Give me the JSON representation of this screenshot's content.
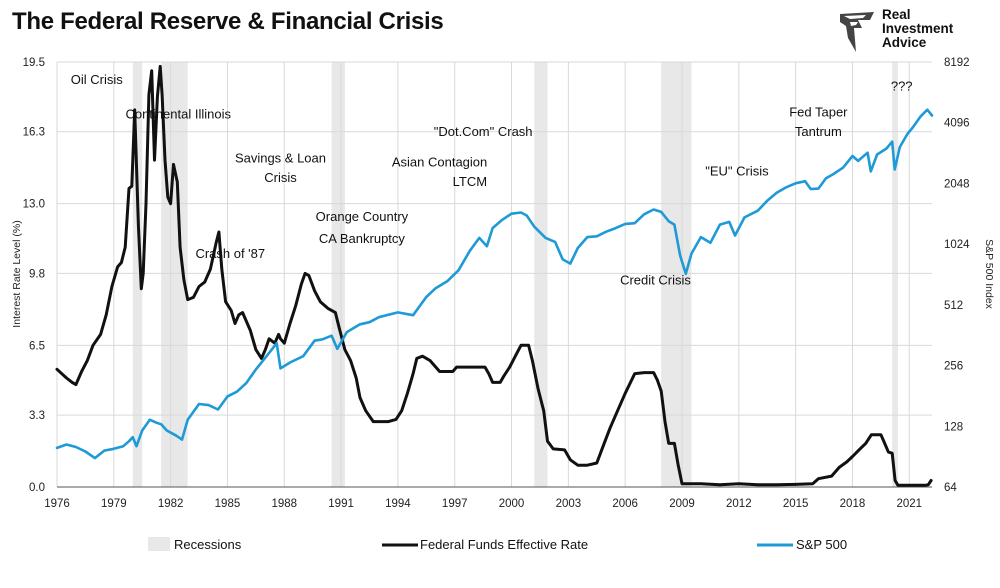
{
  "title": "The Federal Reserve & Financial Crisis",
  "brand": {
    "line1": "Real",
    "line2": "Investment",
    "line3": "Advice"
  },
  "colors": {
    "fed": "#111111",
    "sp500": "#1e9ad6",
    "recession": "#e8e8e8",
    "grid": "#d9d9d9"
  },
  "chart_data": {
    "type": "line",
    "title": "The Federal Reserve & Financial Crisis",
    "xlabel": "",
    "ylabel_left": "Interest Rate Level (%)",
    "ylabel_right": "S&P 500 Index",
    "xlim": [
      1976,
      2022.2
    ],
    "ylim_left": [
      0,
      19.5
    ],
    "ylim_right": [
      64,
      8192
    ],
    "right_scale": "log2",
    "x_ticks": [
      1976,
      1979,
      1982,
      1985,
      1988,
      1991,
      1994,
      1997,
      2000,
      2003,
      2006,
      2009,
      2012,
      2015,
      2018,
      2021
    ],
    "y_ticks_left": [
      0.0,
      3.3,
      6.5,
      9.8,
      13.0,
      16.3,
      19.5
    ],
    "y_ticks_left_labels": [
      "0.0",
      "3.3",
      "6.5",
      "9.8",
      "13.0",
      "16.3",
      "19.5"
    ],
    "y_ticks_right": [
      64,
      128,
      256,
      512,
      1024,
      2048,
      4096,
      8192
    ],
    "recessions": [
      [
        1980.0,
        1980.5
      ],
      [
        1981.5,
        1982.9
      ],
      [
        1990.5,
        1991.2
      ],
      [
        2001.2,
        2001.9
      ],
      [
        2007.9,
        2009.5
      ],
      [
        2020.1,
        2020.4
      ]
    ],
    "legend": {
      "recessions": "Recessions",
      "fed": "Federal Funds Effective Rate",
      "sp500": "S&P 500"
    },
    "series": [
      {
        "name": "Federal Funds Effective Rate",
        "axis": "left",
        "points": [
          [
            1976.0,
            5.4
          ],
          [
            1976.5,
            5.0
          ],
          [
            1976.8,
            4.8
          ],
          [
            1977.0,
            4.7
          ],
          [
            1977.3,
            5.3
          ],
          [
            1977.6,
            5.8
          ],
          [
            1977.9,
            6.5
          ],
          [
            1978.3,
            7.0
          ],
          [
            1978.6,
            7.9
          ],
          [
            1978.9,
            9.2
          ],
          [
            1979.2,
            10.1
          ],
          [
            1979.4,
            10.3
          ],
          [
            1979.6,
            11.0
          ],
          [
            1979.8,
            13.7
          ],
          [
            1979.95,
            13.8
          ],
          [
            1980.1,
            17.3
          ],
          [
            1980.3,
            12.0
          ],
          [
            1980.45,
            9.1
          ],
          [
            1980.55,
            9.8
          ],
          [
            1980.7,
            13.0
          ],
          [
            1980.85,
            18.0
          ],
          [
            1981.0,
            19.1
          ],
          [
            1981.15,
            15.0
          ],
          [
            1981.3,
            17.9
          ],
          [
            1981.45,
            19.3
          ],
          [
            1981.55,
            18.0
          ],
          [
            1981.7,
            15.0
          ],
          [
            1981.85,
            13.3
          ],
          [
            1982.0,
            13.0
          ],
          [
            1982.15,
            14.8
          ],
          [
            1982.35,
            14.0
          ],
          [
            1982.5,
            11.0
          ],
          [
            1982.7,
            9.5
          ],
          [
            1982.9,
            8.6
          ],
          [
            1983.2,
            8.7
          ],
          [
            1983.5,
            9.2
          ],
          [
            1983.8,
            9.4
          ],
          [
            1984.1,
            10.0
          ],
          [
            1984.4,
            11.2
          ],
          [
            1984.55,
            11.7
          ],
          [
            1984.7,
            10.0
          ],
          [
            1984.9,
            8.5
          ],
          [
            1985.2,
            8.1
          ],
          [
            1985.4,
            7.5
          ],
          [
            1985.6,
            7.9
          ],
          [
            1985.8,
            8.0
          ],
          [
            1986.2,
            7.2
          ],
          [
            1986.5,
            6.3
          ],
          [
            1986.8,
            5.9
          ],
          [
            1987.0,
            6.3
          ],
          [
            1987.2,
            6.8
          ],
          [
            1987.5,
            6.6
          ],
          [
            1987.7,
            7.0
          ],
          [
            1987.8,
            6.8
          ],
          [
            1988.0,
            6.6
          ],
          [
            1988.3,
            7.5
          ],
          [
            1988.6,
            8.3
          ],
          [
            1988.9,
            9.3
          ],
          [
            1989.1,
            9.8
          ],
          [
            1989.3,
            9.7
          ],
          [
            1989.6,
            9.0
          ],
          [
            1989.9,
            8.5
          ],
          [
            1990.3,
            8.2
          ],
          [
            1990.7,
            8.0
          ],
          [
            1990.9,
            7.3
          ],
          [
            1991.2,
            6.3
          ],
          [
            1991.5,
            5.8
          ],
          [
            1991.8,
            5.0
          ],
          [
            1992.0,
            4.1
          ],
          [
            1992.3,
            3.5
          ],
          [
            1992.7,
            3.0
          ],
          [
            1993.0,
            3.0
          ],
          [
            1993.5,
            3.0
          ],
          [
            1993.9,
            3.1
          ],
          [
            1994.2,
            3.5
          ],
          [
            1994.5,
            4.3
          ],
          [
            1994.8,
            5.2
          ],
          [
            1995.0,
            5.9
          ],
          [
            1995.3,
            6.0
          ],
          [
            1995.7,
            5.8
          ],
          [
            1996.0,
            5.5
          ],
          [
            1996.2,
            5.3
          ],
          [
            1996.5,
            5.3
          ],
          [
            1996.9,
            5.3
          ],
          [
            1997.1,
            5.5
          ],
          [
            1997.5,
            5.5
          ],
          [
            1997.9,
            5.5
          ],
          [
            1998.2,
            5.5
          ],
          [
            1998.6,
            5.5
          ],
          [
            1998.8,
            5.2
          ],
          [
            1999.0,
            4.8
          ],
          [
            1999.4,
            4.8
          ],
          [
            1999.6,
            5.1
          ],
          [
            1999.9,
            5.5
          ],
          [
            2000.2,
            6.0
          ],
          [
            2000.5,
            6.5
          ],
          [
            2000.9,
            6.5
          ],
          [
            2001.1,
            5.8
          ],
          [
            2001.4,
            4.5
          ],
          [
            2001.7,
            3.5
          ],
          [
            2001.9,
            2.1
          ],
          [
            2002.2,
            1.75
          ],
          [
            2002.8,
            1.7
          ],
          [
            2003.1,
            1.25
          ],
          [
            2003.5,
            1.0
          ],
          [
            2004.0,
            1.0
          ],
          [
            2004.5,
            1.1
          ],
          [
            2004.8,
            1.8
          ],
          [
            2005.2,
            2.7
          ],
          [
            2005.6,
            3.5
          ],
          [
            2006.0,
            4.3
          ],
          [
            2006.5,
            5.2
          ],
          [
            2007.0,
            5.25
          ],
          [
            2007.5,
            5.25
          ],
          [
            2007.7,
            4.9
          ],
          [
            2007.9,
            4.4
          ],
          [
            2008.1,
            3.0
          ],
          [
            2008.3,
            2.0
          ],
          [
            2008.6,
            2.0
          ],
          [
            2008.8,
            1.0
          ],
          [
            2009.0,
            0.15
          ],
          [
            2010.0,
            0.15
          ],
          [
            2011.0,
            0.1
          ],
          [
            2012.0,
            0.15
          ],
          [
            2013.0,
            0.1
          ],
          [
            2014.0,
            0.1
          ],
          [
            2015.0,
            0.12
          ],
          [
            2015.9,
            0.15
          ],
          [
            2016.2,
            0.38
          ],
          [
            2016.9,
            0.5
          ],
          [
            2017.3,
            0.9
          ],
          [
            2017.7,
            1.15
          ],
          [
            2018.0,
            1.4
          ],
          [
            2018.4,
            1.75
          ],
          [
            2018.7,
            2.0
          ],
          [
            2019.0,
            2.4
          ],
          [
            2019.5,
            2.4
          ],
          [
            2019.7,
            2.0
          ],
          [
            2019.9,
            1.6
          ],
          [
            2020.1,
            1.55
          ],
          [
            2020.25,
            0.3
          ],
          [
            2020.4,
            0.08
          ],
          [
            2021.0,
            0.08
          ],
          [
            2021.8,
            0.08
          ],
          [
            2022.0,
            0.1
          ],
          [
            2022.15,
            0.3
          ]
        ]
      },
      {
        "name": "S&P 500",
        "axis": "right",
        "points": [
          [
            1976.0,
            100
          ],
          [
            1976.5,
            104
          ],
          [
            1977.0,
            101
          ],
          [
            1977.5,
            96
          ],
          [
            1978.0,
            89
          ],
          [
            1978.5,
            97
          ],
          [
            1979.0,
            99
          ],
          [
            1979.5,
            102
          ],
          [
            1979.8,
            108
          ],
          [
            1980.0,
            113
          ],
          [
            1980.2,
            102
          ],
          [
            1980.5,
            122
          ],
          [
            1980.9,
            138
          ],
          [
            1981.2,
            134
          ],
          [
            1981.5,
            131
          ],
          [
            1981.8,
            122
          ],
          [
            1982.3,
            115
          ],
          [
            1982.6,
            110
          ],
          [
            1982.9,
            138
          ],
          [
            1983.5,
            165
          ],
          [
            1984.0,
            163
          ],
          [
            1984.5,
            155
          ],
          [
            1985.0,
            180
          ],
          [
            1985.5,
            190
          ],
          [
            1986.0,
            210
          ],
          [
            1986.5,
            245
          ],
          [
            1987.0,
            280
          ],
          [
            1987.6,
            330
          ],
          [
            1987.8,
            248
          ],
          [
            1988.3,
            265
          ],
          [
            1989.0,
            285
          ],
          [
            1989.6,
            340
          ],
          [
            1990.0,
            345
          ],
          [
            1990.5,
            360
          ],
          [
            1990.8,
            310
          ],
          [
            1991.3,
            375
          ],
          [
            1992.0,
            410
          ],
          [
            1992.5,
            420
          ],
          [
            1993.0,
            445
          ],
          [
            1994.0,
            470
          ],
          [
            1994.8,
            455
          ],
          [
            1995.5,
            560
          ],
          [
            1996.0,
            620
          ],
          [
            1996.6,
            670
          ],
          [
            1997.2,
            760
          ],
          [
            1997.8,
            950
          ],
          [
            1998.3,
            1100
          ],
          [
            1998.7,
            1000
          ],
          [
            1999.0,
            1230
          ],
          [
            1999.5,
            1350
          ],
          [
            2000.0,
            1450
          ],
          [
            2000.5,
            1470
          ],
          [
            2000.8,
            1420
          ],
          [
            2001.2,
            1250
          ],
          [
            2001.8,
            1100
          ],
          [
            2002.3,
            1050
          ],
          [
            2002.7,
            860
          ],
          [
            2003.1,
            820
          ],
          [
            2003.5,
            980
          ],
          [
            2004.0,
            1110
          ],
          [
            2004.5,
            1120
          ],
          [
            2005.0,
            1180
          ],
          [
            2005.5,
            1230
          ],
          [
            2006.0,
            1290
          ],
          [
            2006.5,
            1300
          ],
          [
            2007.0,
            1440
          ],
          [
            2007.5,
            1520
          ],
          [
            2007.9,
            1480
          ],
          [
            2008.3,
            1330
          ],
          [
            2008.6,
            1280
          ],
          [
            2008.9,
            900
          ],
          [
            2009.2,
            730
          ],
          [
            2009.5,
            920
          ],
          [
            2010.0,
            1110
          ],
          [
            2010.5,
            1040
          ],
          [
            2011.0,
            1280
          ],
          [
            2011.5,
            1320
          ],
          [
            2011.8,
            1130
          ],
          [
            2012.3,
            1390
          ],
          [
            2013.0,
            1500
          ],
          [
            2013.5,
            1680
          ],
          [
            2014.0,
            1840
          ],
          [
            2014.5,
            1960
          ],
          [
            2015.0,
            2050
          ],
          [
            2015.5,
            2100
          ],
          [
            2015.8,
            1920
          ],
          [
            2016.2,
            1930
          ],
          [
            2016.6,
            2170
          ],
          [
            2017.0,
            2280
          ],
          [
            2017.5,
            2450
          ],
          [
            2018.0,
            2800
          ],
          [
            2018.3,
            2650
          ],
          [
            2018.8,
            2910
          ],
          [
            2018.97,
            2350
          ],
          [
            2019.3,
            2850
          ],
          [
            2019.8,
            3050
          ],
          [
            2020.1,
            3300
          ],
          [
            2020.23,
            2400
          ],
          [
            2020.5,
            3100
          ],
          [
            2020.9,
            3600
          ],
          [
            2021.2,
            3900
          ],
          [
            2021.6,
            4400
          ],
          [
            2021.95,
            4750
          ],
          [
            2022.2,
            4450
          ]
        ]
      }
    ],
    "annotations": [
      {
        "text": "Oil Crisis",
        "x": 1978.1,
        "y_left": 18.5
      },
      {
        "text": "Continental Illinois",
        "x": 1982.4,
        "y_left": 16.9
      },
      {
        "text": "Savings & Loan",
        "x": 1987.8,
        "y_left": 14.9
      },
      {
        "text": "Crisis",
        "x": 1987.8,
        "y_left": 14.0
      },
      {
        "text": "Crash of '87",
        "x": 1985.15,
        "y_left": 10.5
      },
      {
        "text": "Orange Country",
        "x": 1992.1,
        "y_left": 12.2
      },
      {
        "text": "CA Bankruptcy",
        "x": 1992.1,
        "y_left": 11.2
      },
      {
        "text": "\"Dot.Com\" Crash",
        "x": 1998.5,
        "y_left": 16.1
      },
      {
        "text": "Asian Contagion",
        "x": 1996.2,
        "y_left": 14.7
      },
      {
        "text": "LTCM",
        "x": 1997.8,
        "y_left": 13.8
      },
      {
        "text": "Credit Crisis",
        "x": 2007.6,
        "y_left": 9.3
      },
      {
        "text": "\"EU\" Crisis",
        "x": 2011.9,
        "y_left": 14.3
      },
      {
        "text": "Fed Taper",
        "x": 2016.2,
        "y_left": 17.0
      },
      {
        "text": "Tantrum",
        "x": 2016.2,
        "y_left": 16.1
      },
      {
        "text": "???",
        "x": 2020.6,
        "y_left": 18.2
      }
    ]
  }
}
